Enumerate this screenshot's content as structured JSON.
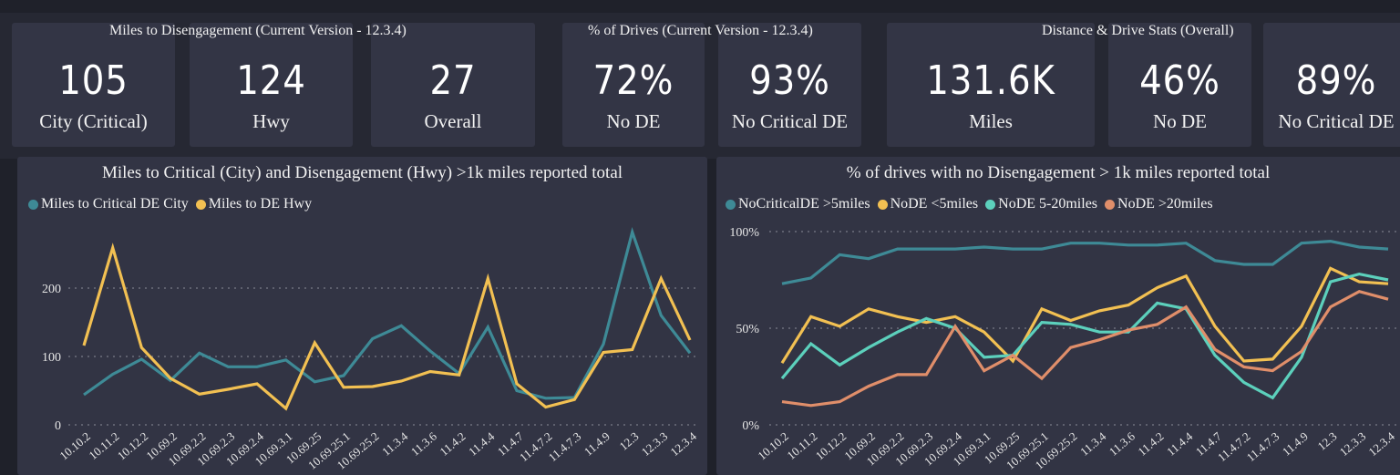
{
  "kpi_groups": [
    {
      "title": "Miles to Disengagement (Current Version - 12.3.4)",
      "cards": [
        {
          "value": "105",
          "label": "City (Critical)"
        },
        {
          "value": "124",
          "label": "Hwy"
        },
        {
          "value": "27",
          "label": "Overall"
        }
      ]
    },
    {
      "title": "% of Drives (Current Version - 12.3.4)",
      "cards": [
        {
          "value": "72%",
          "label": "No DE"
        },
        {
          "value": "93%",
          "label": "No Critical DE"
        }
      ]
    },
    {
      "title": "Distance & Drive Stats (Overall)",
      "cards": [
        {
          "value": "131.6K",
          "label": "Miles"
        },
        {
          "value": "46%",
          "label": "No DE"
        },
        {
          "value": "89%",
          "label": "No Critical DE"
        }
      ]
    }
  ],
  "chart_data": [
    {
      "type": "line",
      "title": "Miles to Critical (City) and Disengagement (Hwy) >1k miles reported total",
      "xlabel": "",
      "ylabel": "",
      "ylim": [
        0,
        270
      ],
      "yticks": [
        0,
        100,
        200
      ],
      "ytick_labels": [
        "0",
        "100",
        "200"
      ],
      "grid": true,
      "legend_position": "top-left",
      "categories": [
        "10.10.2",
        "10.11.2",
        "10.12.2",
        "10.69.2",
        "10.69.2.2",
        "10.69.2.3",
        "10.69.2.4",
        "10.69.3.1",
        "10.69.25",
        "10.69.25.1",
        "10.69.25.2",
        "11.3.4",
        "11.3.6",
        "11.4.2",
        "11.4.4",
        "11.4.7",
        "11.4.7.2",
        "11.4.7.3",
        "11.4.9",
        "12.3",
        "12.3.3",
        "12.3.4"
      ],
      "series": [
        {
          "name": "Miles to Critical DE City",
          "color": "#3e8a96",
          "values": [
            44,
            74,
            96,
            65,
            105,
            85,
            85,
            95,
            63,
            72,
            126,
            145,
            108,
            75,
            143,
            50,
            39,
            40,
            118,
            282,
            160,
            105
          ]
        },
        {
          "name": "Miles to DE Hwy",
          "color": "#f2c052",
          "values": [
            116,
            259,
            113,
            68,
            45,
            52,
            60,
            24,
            120,
            55,
            56,
            64,
            78,
            73,
            214,
            60,
            26,
            37,
            106,
            110,
            214,
            124
          ]
        }
      ]
    },
    {
      "type": "line",
      "title": "% of drives with no Disengagement > 1k miles reported total",
      "xlabel": "",
      "ylabel": "",
      "ylim": [
        0,
        100
      ],
      "yticks": [
        0,
        50,
        100
      ],
      "ytick_labels": [
        "0%",
        "50%",
        "100%"
      ],
      "grid": true,
      "legend_position": "top-left",
      "categories": [
        "10.10.2",
        "10.11.2",
        "10.12.2",
        "10.69.2",
        "10.69.2.2",
        "10.69.2.3",
        "10.69.2.4",
        "10.69.3.1",
        "10.69.25",
        "10.69.25.1",
        "10.69.25.2",
        "11.3.4",
        "11.3.6",
        "11.4.2",
        "11.4.4",
        "11.4.7",
        "11.4.7.2",
        "11.4.7.3",
        "11.4.9",
        "12.3",
        "12.3.3",
        "12.3.4"
      ],
      "series": [
        {
          "name": "NoCriticalDE >5miles",
          "color": "#3e8a96",
          "values": [
            73,
            76,
            88,
            86,
            91,
            91,
            91,
            92,
            91,
            91,
            94,
            94,
            93,
            93,
            94,
            85,
            83,
            83,
            94,
            95,
            92,
            91
          ]
        },
        {
          "name": "NoDE <5miles",
          "color": "#f2c052",
          "values": [
            32,
            56,
            51,
            60,
            56,
            53,
            56,
            48,
            33,
            60,
            54,
            59,
            62,
            71,
            77,
            51,
            33,
            34,
            51,
            81,
            74,
            73
          ]
        },
        {
          "name": "NoDE 5-20miles",
          "color": "#5cd0bc",
          "values": [
            24,
            42,
            31,
            40,
            48,
            55,
            50,
            35,
            36,
            53,
            52,
            48,
            48,
            63,
            60,
            36,
            22,
            14,
            35,
            74,
            78,
            75
          ]
        },
        {
          "name": "NoDE >20miles",
          "color": "#e08e6a",
          "values": [
            12,
            10,
            12,
            20,
            26,
            26,
            51,
            28,
            36,
            24,
            40,
            44,
            49,
            52,
            61,
            39,
            30,
            28,
            38,
            61,
            69,
            65
          ]
        }
      ]
    }
  ]
}
